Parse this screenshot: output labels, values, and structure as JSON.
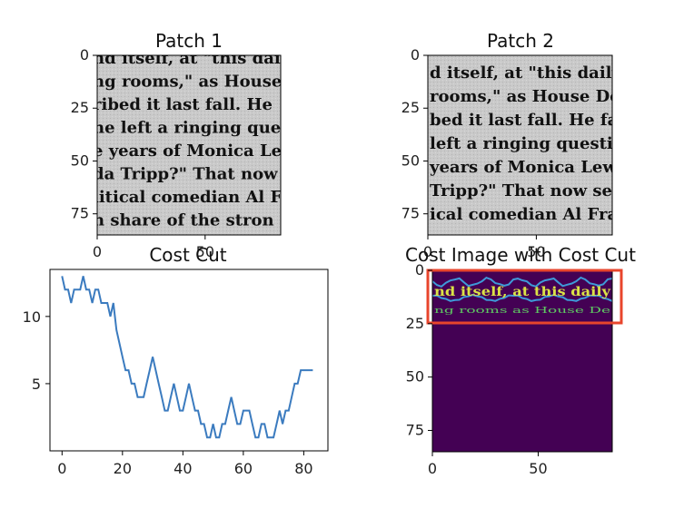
{
  "chart_data": [
    {
      "type": "image",
      "title": "Patch 1",
      "xticks": [
        "0",
        "50"
      ],
      "yticks": [
        "0",
        "25",
        "50",
        "75"
      ],
      "xlim": [
        0,
        85
      ],
      "ylim": [
        85,
        0
      ],
      "text_lines": [
        "nd itself, at \"this dai",
        "ng rooms,\" as House",
        "ribed it last fall. He",
        "he left a ringing ques",
        "e years of Monica Le",
        "da Tripp?\" That now",
        "litical comedian Al F",
        "n share of the stron"
      ]
    },
    {
      "type": "image",
      "title": "Patch 2",
      "xticks": [
        "0",
        "50"
      ],
      "yticks": [
        "0",
        "25",
        "50",
        "75"
      ],
      "xlim": [
        0,
        85
      ],
      "ylim": [
        85,
        0
      ],
      "text_lines": [
        "d itself, at \"this daily",
        "rooms,\" as House De",
        "bed it last fall. He fa",
        "left a ringing questio",
        "years of Monica Lew",
        "Tripp?\" That now see",
        "ical comedian Al Fra"
      ]
    },
    {
      "type": "line",
      "title": "Cost Cut",
      "xlim": [
        -4,
        88
      ],
      "ylim": [
        0,
        13.5
      ],
      "xticks": [
        0,
        20,
        40,
        60,
        80
      ],
      "yticks": [
        5,
        10
      ],
      "series": [
        {
          "color": "#3b7bbf",
          "x": [
            0,
            1,
            2,
            3,
            4,
            5,
            6,
            7,
            8,
            9,
            10,
            11,
            12,
            13,
            14,
            15,
            16,
            17,
            18,
            19,
            20,
            21,
            22,
            23,
            24,
            25,
            26,
            27,
            28,
            29,
            30,
            31,
            32,
            33,
            34,
            35,
            36,
            37,
            38,
            39,
            40,
            41,
            42,
            43,
            44,
            45,
            46,
            47,
            48,
            49,
            50,
            51,
            52,
            53,
            54,
            55,
            56,
            57,
            58,
            59,
            60,
            61,
            62,
            63,
            64,
            65,
            66,
            67,
            68,
            69,
            70,
            71,
            72,
            73,
            74,
            75,
            76,
            77,
            78,
            79,
            80,
            81,
            82,
            83
          ],
          "y": [
            13,
            12,
            12,
            11,
            12,
            12,
            12,
            13,
            12,
            12,
            11,
            12,
            12,
            11,
            11,
            11,
            10,
            11,
            9,
            8,
            7,
            6,
            6,
            5,
            5,
            4,
            4,
            4,
            5,
            6,
            7,
            6,
            5,
            4,
            3,
            3,
            4,
            5,
            4,
            3,
            3,
            4,
            5,
            4,
            3,
            3,
            2,
            2,
            1,
            1,
            2,
            1,
            1,
            2,
            2,
            3,
            4,
            3,
            2,
            2,
            3,
            3,
            3,
            2,
            1,
            1,
            2,
            2,
            1,
            1,
            1,
            2,
            3,
            2,
            3,
            3,
            4,
            5,
            5,
            6,
            6,
            6,
            6,
            6
          ]
        }
      ]
    },
    {
      "type": "heatmap",
      "title": "Cost Image with Cost Cut",
      "xticks": [
        "0",
        "50"
      ],
      "yticks": [
        "0",
        "25",
        "50",
        "75"
      ],
      "xlim": [
        0,
        85
      ],
      "ylim": [
        85,
        0
      ],
      "colors": {
        "background": "#440154",
        "band_line": "#3e9ad8",
        "text_yellow": "#dbe346",
        "text_green": "#5ec962",
        "highlight_box": "#e8452c"
      },
      "text_lines": [
        "nd itself, at this daily",
        "ng rooms as House De"
      ]
    }
  ]
}
